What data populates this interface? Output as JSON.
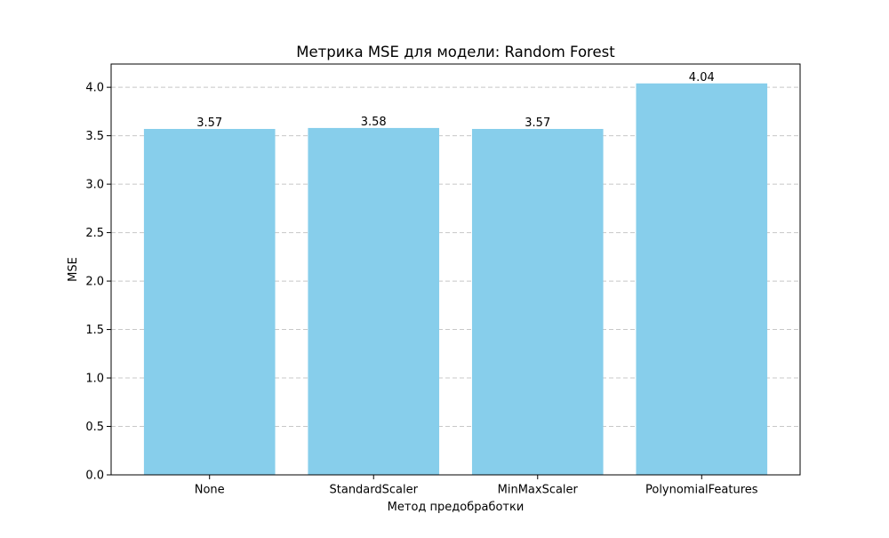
{
  "chart_data": {
    "type": "bar",
    "title": "Метрика MSE для модели: Random Forest",
    "xlabel": "Метод предобработки",
    "ylabel": "MSE",
    "categories": [
      "None",
      "StandardScaler",
      "MinMaxScaler",
      "PolynomialFeatures"
    ],
    "values": [
      3.57,
      3.58,
      3.57,
      4.04
    ],
    "data_labels": [
      "3.57",
      "3.58",
      "3.57",
      "4.04"
    ],
    "ylim": [
      0,
      4.24
    ],
    "yticks": [
      0.0,
      0.5,
      1.0,
      1.5,
      2.0,
      2.5,
      3.0,
      3.5,
      4.0
    ],
    "ytick_labels": [
      "0.0",
      "0.5",
      "1.0",
      "1.5",
      "2.0",
      "2.5",
      "3.0",
      "3.5",
      "4.0"
    ],
    "grid": "y-dashed",
    "bar_color": "#87ceeb",
    "grid_color": "#c8c8c8"
  }
}
